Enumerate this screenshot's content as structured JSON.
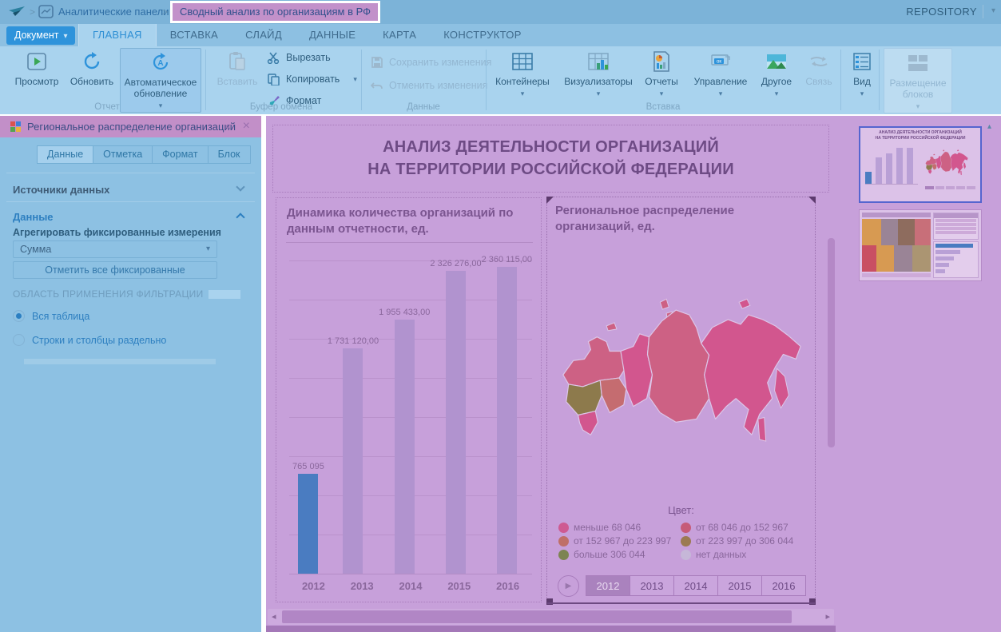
{
  "glyphs": {
    "caret_down": "▾",
    "collapse": "«",
    "close": "×",
    "play": "▶",
    "scroll_left": "◂",
    "scroll_right": "▸",
    "collapse_ribbon": "▴",
    "crumb_sep": ">"
  },
  "topbar": {
    "breadcrumb_root": "Аналитические панели",
    "breadcrumb_current": "Сводный анализ по организациям в РФ",
    "repository": "REPOSITORY"
  },
  "ribbon": {
    "document_button": "Документ",
    "tabs": [
      "ГЛАВНАЯ",
      "ВСТАВКА",
      "СЛАЙД",
      "ДАННЫЕ",
      "КАРТА",
      "КОНСТРУКТОР"
    ],
    "active_tab": "ГЛАВНАЯ",
    "buttons": {
      "preview": "Просмотр",
      "refresh": "Обновить",
      "auto_refresh": "Автоматическое обновление",
      "paste": "Вставить",
      "cut": "Вырезать",
      "copy": "Копировать",
      "format": "Формат",
      "save": "Сохранить изменения",
      "undo": "Отменить изменения",
      "containers": "Контейнеры",
      "visualizers": "Визуализаторы",
      "reports": "Отчеты",
      "management": "Управление",
      "other": "Другое",
      "link": "Связь",
      "view": "Вид",
      "layout": "Размещение блоков"
    },
    "groups": {
      "report": "Отчет",
      "clipboard": "Буфер обмена",
      "data": "Данные",
      "insert": "Вставка"
    }
  },
  "panel": {
    "title": "Региональное распределение организаций",
    "tabs": [
      "Данные",
      "Отметка",
      "Формат",
      "Блок"
    ],
    "active_tab": "Данные",
    "section_sources": "Источники данных",
    "section_data": "Данные",
    "aggregate_label": "Агрегировать фиксированные измерения",
    "aggregate_value": "Сумма",
    "mark_all_button": "Отметить все фиксированные",
    "filter_scope_label": "ОБЛАСТЬ ПРИМЕНЕНИЯ ФИЛЬТРАЦИИ",
    "radios": [
      {
        "label": "Вся таблица",
        "selected": true
      },
      {
        "label": "Строки и столбцы раздельно",
        "selected": false
      }
    ]
  },
  "slide": {
    "title_line1": "АНАЛИЗ ДЕЯТЕЛЬНОСТИ ОРГАНИЗАЦИЙ",
    "title_line2": "НА ТЕРРИТОРИИ РОССИЙСКОЙ ФЕДЕРАЦИИ"
  },
  "chart_data": {
    "type": "bar",
    "title": "Динамика количества организаций по данным отчетности, ед.",
    "categories": [
      "2012",
      "2013",
      "2014",
      "2015",
      "2016"
    ],
    "values": [
      765095,
      1731120,
      1955433,
      2326276,
      2360115
    ],
    "labels": [
      "765 095",
      "1 731 120,00",
      "1 955 433,00",
      "2 326 276,00",
      "2 360 115,00"
    ],
    "highlight_index": 0,
    "highlight_color": "#4a7cc1",
    "bar_color": "#b193cf",
    "xlabel": "",
    "ylabel": "",
    "ylim": [
      0,
      2500000
    ],
    "gridline_step": 300000,
    "legend_position": "none"
  },
  "map": {
    "title": "Региональное распределение организаций, ед.",
    "legend_title": "Цвет:",
    "legend": [
      {
        "label": "меньше 68 046",
        "color": "#ce5a92"
      },
      {
        "label": "от 68 046 до 152 967",
        "color": "#c65b78"
      },
      {
        "label": "от 152 967 до 223 997",
        "color": "#bf6f68"
      },
      {
        "label": "от 223 997 до 306 044",
        "color": "#9c7a52"
      },
      {
        "label": "больше 306 044",
        "color": "#7d8452"
      },
      {
        "label": "нет данных",
        "color": "#c6b7d8"
      }
    ],
    "years": [
      "2012",
      "2013",
      "2014",
      "2015",
      "2016"
    ],
    "selected_year": "2012"
  },
  "thumbnails": {
    "one": "1",
    "two": "2"
  }
}
